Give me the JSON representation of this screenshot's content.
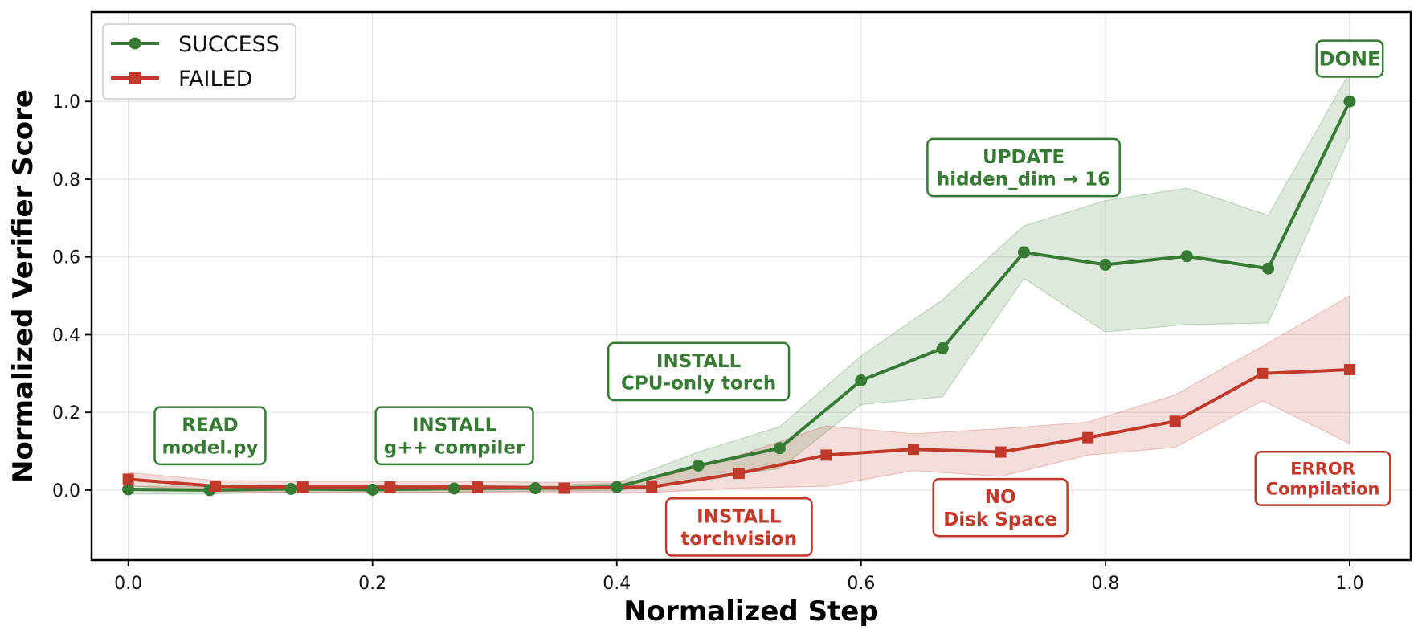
{
  "chart_data": {
    "type": "line",
    "title": "",
    "xlabel": "Normalized Step",
    "ylabel": "Normalized Verifier Score",
    "xlim": [
      -0.03,
      1.05
    ],
    "ylim": [
      -0.18,
      1.23
    ],
    "xticks": [
      "0.0",
      "0.2",
      "0.4",
      "0.6",
      "0.8",
      "1.0"
    ],
    "xtick_values": [
      0.0,
      0.2,
      0.4,
      0.6,
      0.8,
      1.0
    ],
    "yticks": [
      "0.0",
      "0.2",
      "0.4",
      "0.6",
      "0.8",
      "1.0"
    ],
    "ytick_values": [
      0.0,
      0.2,
      0.4,
      0.6,
      0.8,
      1.0
    ],
    "grid": true,
    "legend_position": "top-left",
    "series": [
      {
        "name": "SUCCESS",
        "color": "#367a33",
        "marker": "circle",
        "x": [
          0.0,
          0.0667,
          0.1333,
          0.2,
          0.2667,
          0.3333,
          0.4,
          0.4667,
          0.5333,
          0.6,
          0.6667,
          0.7333,
          0.8,
          0.8667,
          0.9333,
          1.0
        ],
        "y": [
          0.002,
          0.0,
          0.003,
          0.001,
          0.004,
          0.005,
          0.008,
          0.063,
          0.108,
          0.282,
          0.365,
          0.612,
          0.58,
          0.602,
          0.57,
          1.0
        ],
        "band_low": [
          -0.01,
          -0.01,
          -0.005,
          -0.008,
          -0.005,
          -0.003,
          -0.002,
          0.03,
          0.055,
          0.22,
          0.24,
          0.545,
          0.407,
          0.426,
          0.43,
          0.91
        ],
        "band_high": [
          0.01,
          0.01,
          0.01,
          0.01,
          0.012,
          0.012,
          0.018,
          0.098,
          0.163,
          0.345,
          0.49,
          0.68,
          0.745,
          0.777,
          0.707,
          1.075
        ]
      },
      {
        "name": "FAILED",
        "color": "#c0392b",
        "marker": "square",
        "x": [
          0.0,
          0.0714,
          0.1429,
          0.2143,
          0.2857,
          0.3571,
          0.4286,
          0.5,
          0.5714,
          0.6429,
          0.7143,
          0.7857,
          0.8571,
          0.9286,
          1.0
        ],
        "y": [
          0.028,
          0.01,
          0.008,
          0.008,
          0.008,
          0.005,
          0.008,
          0.043,
          0.09,
          0.105,
          0.098,
          0.135,
          0.177,
          0.3,
          0.31
        ],
        "band_low": [
          0.012,
          -0.004,
          -0.006,
          -0.006,
          -0.006,
          -0.006,
          -0.006,
          0.005,
          0.01,
          0.05,
          0.035,
          0.09,
          0.11,
          0.23,
          0.12
        ],
        "band_high": [
          0.045,
          0.025,
          0.022,
          0.022,
          0.022,
          0.02,
          0.025,
          0.09,
          0.165,
          0.145,
          0.158,
          0.175,
          0.245,
          0.37,
          0.5
        ]
      }
    ],
    "annotations": [
      {
        "lines": [
          "READ",
          "model.py"
        ],
        "x": 0.067,
        "y": 0.14,
        "color": "#367a33"
      },
      {
        "lines": [
          "INSTALL",
          "g++ compiler"
        ],
        "x": 0.267,
        "y": 0.14,
        "color": "#367a33"
      },
      {
        "lines": [
          "INSTALL",
          "CPU-only torch"
        ],
        "x": 0.467,
        "y": 0.305,
        "color": "#367a33"
      },
      {
        "lines": [
          "UPDATE",
          "hidden_dim → 16"
        ],
        "x": 0.733,
        "y": 0.83,
        "color": "#367a33"
      },
      {
        "lines": [
          "DONE"
        ],
        "x": 1.0,
        "y": 1.11,
        "color": "#367a33"
      },
      {
        "lines": [
          "INSTALL",
          "torchvision"
        ],
        "x": 0.5,
        "y": -0.095,
        "color": "#c0392b"
      },
      {
        "lines": [
          "NO",
          "Disk Space"
        ],
        "x": 0.714,
        "y": -0.045,
        "color": "#c0392b"
      },
      {
        "lines": [
          "ERROR",
          "Compilation"
        ],
        "x": 0.978,
        "y": 0.03,
        "color": "#c0392b"
      }
    ]
  }
}
